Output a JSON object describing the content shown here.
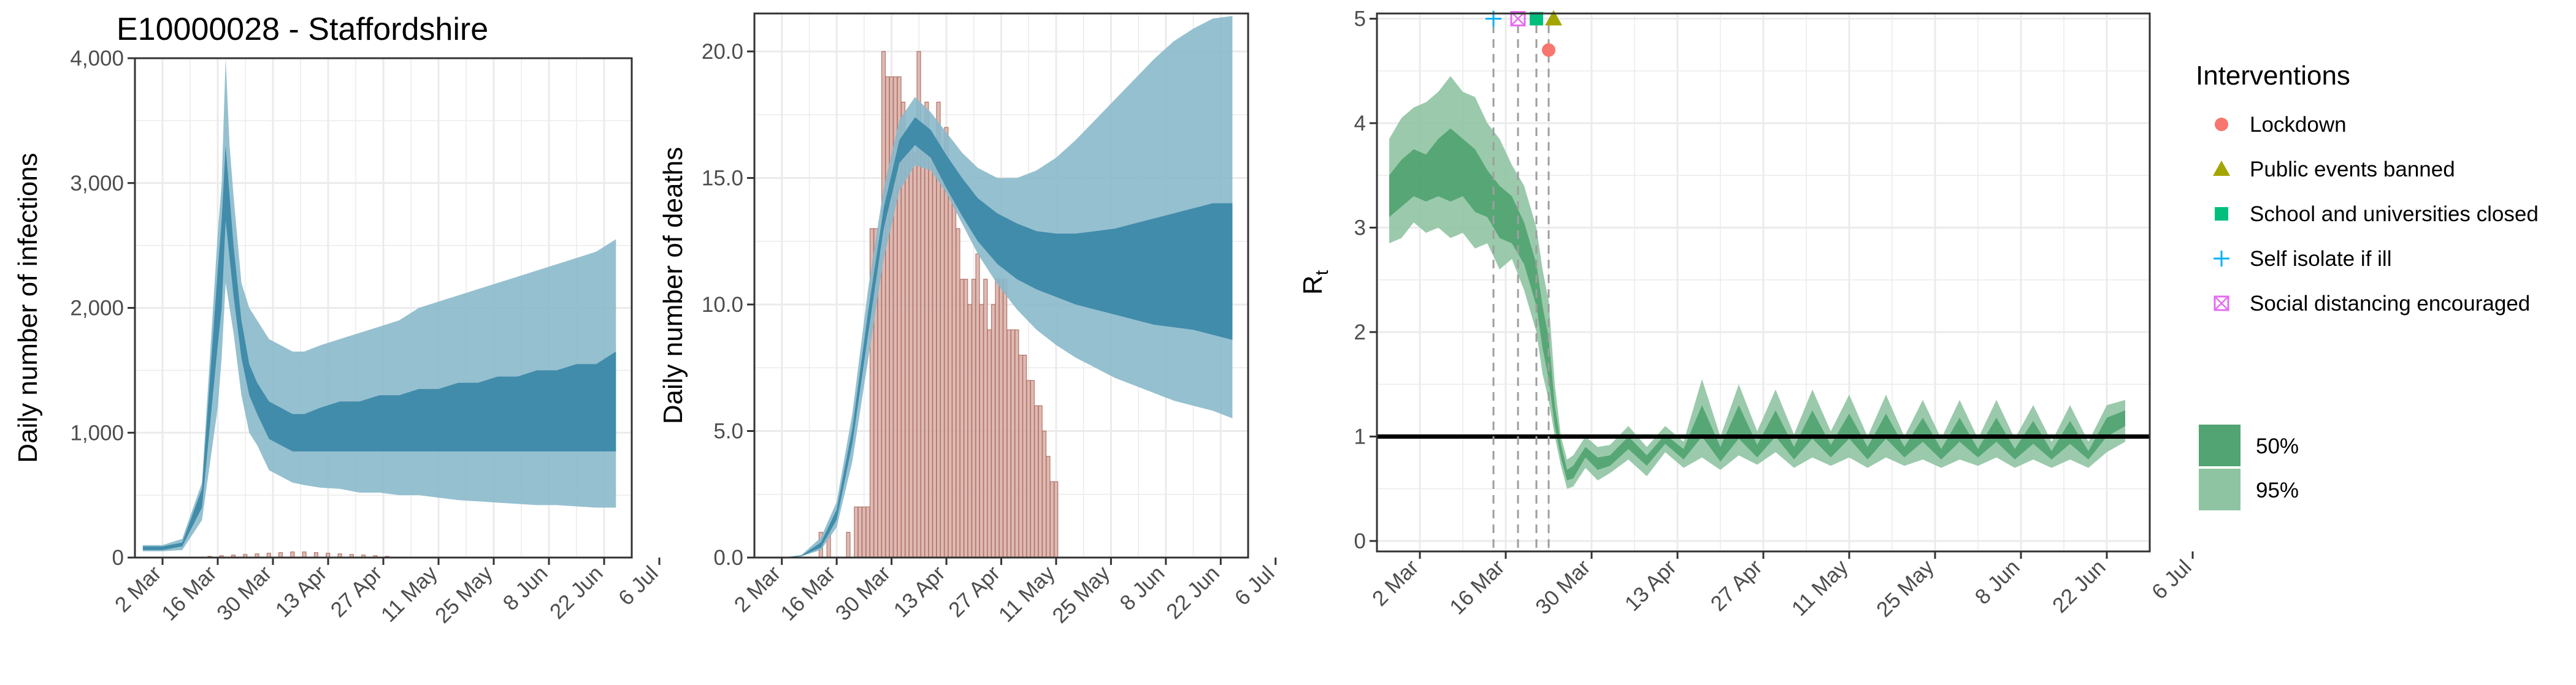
{
  "title": "E10000028 - Staffordshire",
  "colors": {
    "blue_light": "#8ab9cb",
    "blue_dark": "#3c89a8",
    "bar_fill": "#d8aea6",
    "bar_stroke": "#b37468",
    "green_light": "#8fc4a2",
    "green_dark": "#52a472",
    "grid": "#ebebeb",
    "vline": "#9e9e9e",
    "lockdown": "#f8766d",
    "public_events": "#a3a500",
    "schools": "#00bf7d",
    "self_isolate": "#00b0f6",
    "social_distancing": "#e76bf3"
  },
  "x_ticks": [
    "2 Mar",
    "16 Mar",
    "30 Mar",
    "13 Apr",
    "27 Apr",
    "11 May",
    "25 May",
    "8 Jun",
    "22 Jun",
    "6 Jul"
  ],
  "legend": {
    "interventions_title": "Interventions",
    "interventions": [
      {
        "label": "Lockdown",
        "icon": "circle",
        "color": "#f8766d"
      },
      {
        "label": "Public events banned",
        "icon": "triangle",
        "color": "#a3a500"
      },
      {
        "label": "School and universities closed",
        "icon": "square",
        "color": "#00bf7d"
      },
      {
        "label": "Self isolate if ill",
        "icon": "plus",
        "color": "#00b0f6"
      },
      {
        "label": "Social distancing encouraged",
        "icon": "boxed-x",
        "color": "#e76bf3"
      }
    ],
    "ci": [
      {
        "label": "50%",
        "color": "#52a472"
      },
      {
        "label": "95%",
        "color": "#8fc4a2"
      }
    ]
  },
  "chart_data": [
    {
      "type": "area",
      "ylabel": "Daily number of infections",
      "ylim": [
        0,
        4000
      ],
      "y_ticks": [
        "0",
        "1,000",
        "2,000",
        "3,000",
        "4,000"
      ],
      "x_axis": "date (days since 2 Mar)",
      "x_range": [
        -7,
        119
      ],
      "series": [
        {
          "name": "95%",
          "x": [
            -5,
            0,
            5,
            10,
            14,
            15,
            16,
            17,
            18,
            20,
            22,
            24,
            27,
            30,
            33,
            36,
            40,
            45,
            50,
            55,
            60,
            65,
            70,
            75,
            80,
            85,
            90,
            95,
            100,
            105,
            110,
            115
          ],
          "lower": [
            50,
            50,
            60,
            300,
            1200,
            1600,
            2200,
            2000,
            1800,
            1300,
            1000,
            900,
            700,
            650,
            600,
            580,
            560,
            550,
            520,
            520,
            500,
            500,
            480,
            460,
            450,
            440,
            430,
            420,
            420,
            410,
            400,
            400
          ],
          "upper": [
            100,
            100,
            150,
            600,
            2600,
            3000,
            4000,
            3300,
            2900,
            2200,
            2000,
            1900,
            1750,
            1700,
            1650,
            1650,
            1700,
            1750,
            1800,
            1850,
            1900,
            2000,
            2050,
            2100,
            2150,
            2200,
            2250,
            2300,
            2350,
            2400,
            2450,
            2550
          ]
        },
        {
          "name": "50%",
          "x": [
            -5,
            0,
            5,
            10,
            14,
            15,
            16,
            17,
            18,
            20,
            22,
            24,
            27,
            30,
            33,
            36,
            40,
            45,
            50,
            55,
            60,
            65,
            70,
            75,
            80,
            85,
            90,
            95,
            100,
            105,
            110,
            115
          ],
          "lower": [
            60,
            60,
            90,
            400,
            1700,
            2000,
            2700,
            2400,
            2100,
            1600,
            1300,
            1150,
            950,
            900,
            850,
            850,
            850,
            850,
            850,
            850,
            850,
            850,
            850,
            850,
            850,
            850,
            850,
            850,
            850,
            850,
            850,
            850
          ],
          "upper": [
            90,
            90,
            120,
            550,
            2300,
            2700,
            3300,
            2900,
            2500,
            1900,
            1550,
            1400,
            1250,
            1200,
            1150,
            1150,
            1200,
            1250,
            1250,
            1300,
            1300,
            1350,
            1350,
            1400,
            1400,
            1450,
            1450,
            1500,
            1500,
            1550,
            1550,
            1650
          ]
        }
      ],
      "bars": {
        "x": [
          12,
          15,
          18,
          21,
          24,
          27,
          30,
          33,
          36,
          39,
          42,
          45,
          48,
          51,
          54,
          57
        ],
        "values": [
          10,
          15,
          20,
          25,
          30,
          35,
          40,
          45,
          45,
          40,
          35,
          30,
          25,
          20,
          15,
          10
        ]
      }
    },
    {
      "type": "bar",
      "ylabel": "Daily number of deaths",
      "ylim": [
        0,
        21.5
      ],
      "y_ticks": [
        "0.0",
        "5.0",
        "10.0",
        "15.0",
        "20.0"
      ],
      "x_axis": "date (days since 2 Mar)",
      "x_range": [
        -7,
        119
      ],
      "bars": {
        "x": [
          10,
          11,
          12,
          13,
          14,
          15,
          16,
          17,
          18,
          19,
          20,
          21,
          22,
          23,
          24,
          25,
          26,
          27,
          28,
          29,
          30,
          31,
          32,
          33,
          34,
          35,
          36,
          37,
          38,
          39,
          40,
          41,
          42,
          43,
          44,
          45,
          46,
          47,
          48,
          49,
          50,
          51,
          52,
          53,
          54,
          55,
          56,
          57,
          58,
          59,
          60,
          61,
          62,
          63,
          64,
          65,
          66,
          67,
          68,
          69,
          70
        ],
        "values": [
          1,
          0,
          1,
          0,
          0,
          0,
          0,
          1,
          0,
          2,
          2,
          2,
          2,
          13,
          13,
          12,
          20,
          19,
          19,
          19,
          19,
          18,
          16,
          17,
          16,
          20,
          17,
          18,
          16,
          16,
          18,
          16,
          17,
          15,
          14,
          13,
          11,
          11,
          10,
          11,
          12,
          10,
          11,
          9,
          10,
          11,
          11,
          11,
          9,
          9,
          9,
          8,
          8,
          7,
          7,
          6,
          6,
          5,
          4,
          3,
          3
        ]
      },
      "series": [
        {
          "name": "95%",
          "x": [
            -5,
            0,
            5,
            10,
            14,
            18,
            22,
            26,
            30,
            34,
            38,
            42,
            46,
            50,
            55,
            60,
            65,
            70,
            75,
            80,
            85,
            90,
            95,
            100,
            105,
            110,
            115
          ],
          "lower": [
            0,
            0,
            0.05,
            0.3,
            1.2,
            3.8,
            7.8,
            11.8,
            14.5,
            15.5,
            15.3,
            14.4,
            13.2,
            12.0,
            10.8,
            9.8,
            9.0,
            8.4,
            7.9,
            7.5,
            7.1,
            6.8,
            6.5,
            6.2,
            6.0,
            5.8,
            5.5
          ],
          "upper": [
            0,
            0,
            0.1,
            0.8,
            2.2,
            5.7,
            10.6,
            14.6,
            17.3,
            18.2,
            17.6,
            16.8,
            16.0,
            15.4,
            15.0,
            15.0,
            15.3,
            15.8,
            16.5,
            17.3,
            18.1,
            18.9,
            19.7,
            20.4,
            20.9,
            21.3,
            21.4
          ]
        },
        {
          "name": "50%",
          "x": [
            -5,
            0,
            5,
            10,
            14,
            18,
            22,
            26,
            30,
            34,
            38,
            42,
            46,
            50,
            55,
            60,
            65,
            70,
            75,
            80,
            85,
            90,
            95,
            100,
            105,
            110,
            115
          ],
          "lower": [
            0,
            0,
            0.05,
            0.4,
            1.5,
            4.5,
            8.8,
            13.0,
            15.6,
            16.3,
            15.8,
            14.6,
            13.5,
            12.5,
            11.6,
            11.0,
            10.6,
            10.3,
            10.0,
            9.8,
            9.6,
            9.4,
            9.2,
            9.1,
            9.0,
            8.8,
            8.6
          ],
          "upper": [
            0,
            0,
            0.08,
            0.6,
            1.9,
            5.1,
            9.7,
            13.8,
            16.5,
            17.4,
            16.9,
            15.9,
            15.0,
            14.2,
            13.6,
            13.2,
            12.9,
            12.8,
            12.8,
            12.9,
            13.0,
            13.2,
            13.4,
            13.6,
            13.8,
            14.0,
            14.0
          ]
        }
      ]
    },
    {
      "type": "line",
      "ylabel": "R",
      "ylabel_sub": "t",
      "ylim": [
        -0.1,
        5.05
      ],
      "y_ticks": [
        "0",
        "1",
        "2",
        "3",
        "4",
        "5"
      ],
      "x_axis": "date (days since 2 Mar)",
      "x_range": [
        -7,
        119
      ],
      "reference_line": 1,
      "intervention_days": {
        "self_isolate": 12,
        "social_distancing": 16,
        "schools": 19,
        "public_events": 21,
        "lockdown": 21
      },
      "series": [
        {
          "name": "95%",
          "x": [
            -5,
            -3,
            -1,
            1,
            3,
            5,
            7,
            9,
            11,
            13,
            15,
            17,
            19,
            20,
            21,
            22,
            23,
            24,
            25,
            27,
            29,
            31,
            34,
            37,
            40,
            43,
            46,
            49,
            52,
            55,
            58,
            61,
            64,
            67,
            70,
            73,
            76,
            79,
            82,
            85,
            88,
            91,
            94,
            97,
            100,
            103,
            106,
            109,
            112,
            115
          ],
          "lower": [
            2.85,
            2.9,
            3.05,
            2.95,
            3.0,
            2.9,
            2.95,
            2.8,
            2.85,
            2.6,
            2.7,
            2.4,
            2.0,
            1.6,
            1.35,
            1.0,
            0.72,
            0.5,
            0.52,
            0.7,
            0.58,
            0.65,
            0.78,
            0.62,
            0.85,
            0.7,
            0.8,
            0.68,
            0.82,
            0.73,
            0.85,
            0.7,
            0.8,
            0.72,
            0.8,
            0.7,
            0.8,
            0.72,
            0.78,
            0.7,
            0.78,
            0.72,
            0.8,
            0.7,
            0.78,
            0.7,
            0.78,
            0.7,
            0.85,
            0.95
          ],
          "upper": [
            3.85,
            4.05,
            4.15,
            4.2,
            4.3,
            4.45,
            4.3,
            4.25,
            4.0,
            3.85,
            3.6,
            3.4,
            3.0,
            2.6,
            2.3,
            1.5,
            1.0,
            0.78,
            0.82,
            1.0,
            0.9,
            0.92,
            1.1,
            0.9,
            1.1,
            0.95,
            1.55,
            1.0,
            1.5,
            1.05,
            1.45,
            1.02,
            1.45,
            1.05,
            1.4,
            1.0,
            1.4,
            1.0,
            1.35,
            0.98,
            1.35,
            0.98,
            1.35,
            0.98,
            1.3,
            0.95,
            1.3,
            0.95,
            1.3,
            1.35
          ]
        },
        {
          "name": "50%",
          "x": [
            -5,
            -3,
            -1,
            1,
            3,
            5,
            7,
            9,
            11,
            13,
            15,
            17,
            19,
            20,
            21,
            22,
            23,
            24,
            25,
            27,
            29,
            31,
            34,
            37,
            40,
            43,
            46,
            49,
            52,
            55,
            58,
            61,
            64,
            67,
            70,
            73,
            76,
            79,
            82,
            85,
            88,
            91,
            94,
            97,
            100,
            103,
            106,
            109,
            112,
            115
          ],
          "lower": [
            3.1,
            3.2,
            3.3,
            3.25,
            3.3,
            3.25,
            3.3,
            3.15,
            3.1,
            2.9,
            2.85,
            2.65,
            2.25,
            1.85,
            1.55,
            1.1,
            0.8,
            0.58,
            0.6,
            0.8,
            0.68,
            0.72,
            0.88,
            0.72,
            0.93,
            0.78,
            1.0,
            0.76,
            0.98,
            0.8,
            1.0,
            0.78,
            0.98,
            0.8,
            0.98,
            0.78,
            0.98,
            0.8,
            0.95,
            0.78,
            0.95,
            0.8,
            0.95,
            0.78,
            0.93,
            0.78,
            0.93,
            0.78,
            1.0,
            1.1
          ],
          "upper": [
            3.5,
            3.65,
            3.75,
            3.7,
            3.85,
            3.95,
            3.85,
            3.75,
            3.55,
            3.4,
            3.3,
            3.05,
            2.65,
            2.25,
            1.95,
            1.3,
            0.92,
            0.68,
            0.72,
            0.9,
            0.8,
            0.82,
            1.0,
            0.82,
            1.02,
            0.88,
            1.3,
            0.9,
            1.3,
            0.92,
            1.25,
            0.9,
            1.25,
            0.92,
            1.22,
            0.9,
            1.22,
            0.9,
            1.18,
            0.88,
            1.18,
            0.88,
            1.18,
            0.88,
            1.15,
            0.86,
            1.15,
            0.86,
            1.18,
            1.25
          ]
        }
      ]
    }
  ]
}
